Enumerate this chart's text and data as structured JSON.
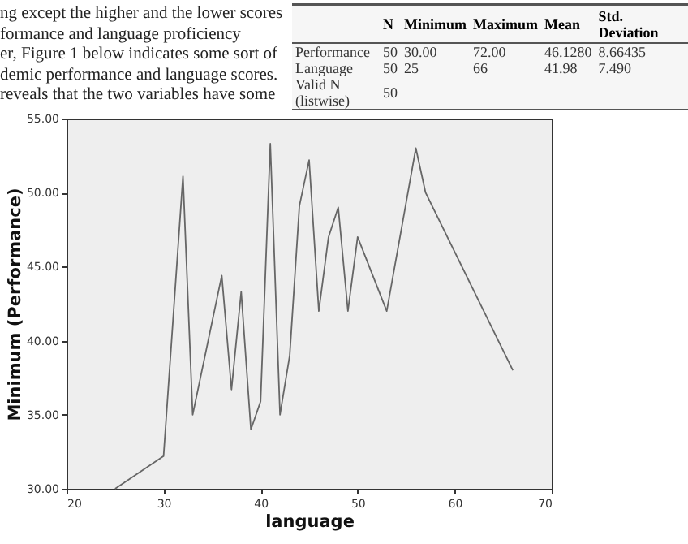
{
  "chart_data": [
    {
      "type": "other",
      "annotations": [
        "ng except the higher and the lower scores",
        "formance and language proficiency",
        "er, Figure 1 below indicates some sort of",
        "demic performance and language scores.",
        "reveals that the two variables have some"
      ]
    },
    {
      "type": "other",
      "categories": [
        "N",
        "Minimum",
        "Maximum",
        "Mean",
        "Std. Deviation"
      ],
      "y_categories": [
        "Performance",
        "Language",
        "Valid N (listwise)"
      ],
      "cell_labels": [
        [
          "50",
          "30.00",
          "72.00",
          "46.1280",
          "8.66435"
        ],
        [
          "50",
          "25",
          "66",
          "41.98",
          "7.490"
        ],
        [
          "50",
          null,
          null,
          null,
          null
        ]
      ]
    },
    {
      "type": "line",
      "xlabel": "language",
      "ylabel": "Minimum (Performance)",
      "x": [
        25,
        30,
        32,
        33,
        36,
        37,
        38,
        39,
        40,
        41,
        42,
        43,
        44,
        45,
        46,
        47,
        48,
        49,
        50,
        53,
        56,
        57,
        66
      ],
      "series": [
        {
          "color": "#666666",
          "values": [
            30,
            32.2,
            51.1,
            35,
            44.4,
            36.7,
            43.3,
            34,
            35.9,
            53.3,
            35,
            39,
            49.1,
            52.2,
            42,
            47,
            49,
            42,
            47,
            42,
            53,
            50,
            38
          ]
        }
      ],
      "xlim": [
        20,
        70
      ],
      "xticks": [
        20,
        30,
        40,
        50,
        60,
        70
      ],
      "ylim": [
        30,
        55
      ],
      "yticks": [
        {
          "value": 30,
          "label": "30.00"
        },
        {
          "value": 35,
          "label": "35.00"
        },
        {
          "value": 40,
          "label": "40.00"
        },
        {
          "value": 45,
          "label": "45.00"
        },
        {
          "value": 50,
          "label": "50.00"
        },
        {
          "value": 55,
          "label": "55.00"
        }
      ],
      "grid": false,
      "legend": false
    }
  ]
}
